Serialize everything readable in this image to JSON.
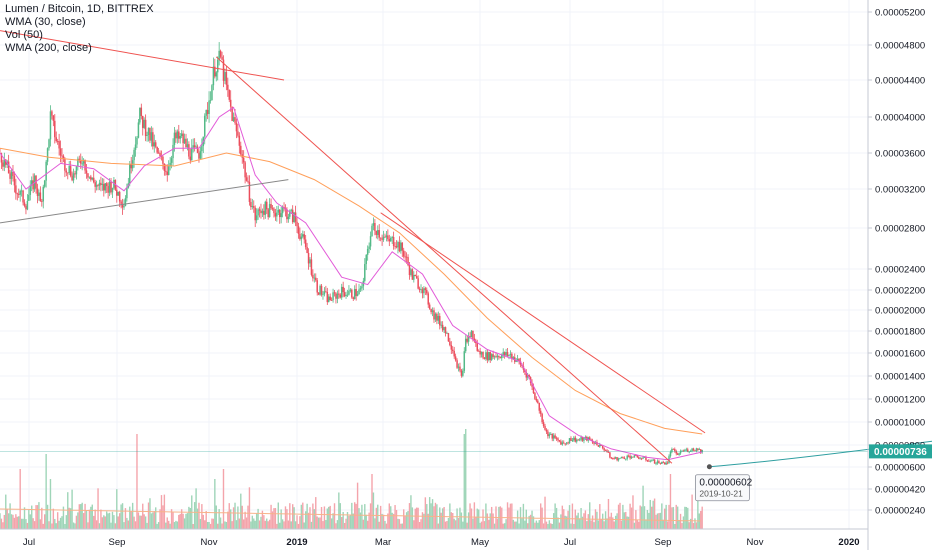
{
  "legend": {
    "symbol": "Lumen / Bitcoin, 1D, BITTREX",
    "wma30": "WMA (30, close)",
    "vol": "Vol (50)",
    "wma200": "WMA (200, close)"
  },
  "colors": {
    "up": "#53b987",
    "down": "#eb4d5c",
    "vol_up": "#9fd5b8",
    "vol_down": "#f4a4ab",
    "wma30": "#e25bd8",
    "wma200": "#ff9f5a",
    "vol_ma": "#f7b38a",
    "trend_red": "#ef5350",
    "trend_gray": "#888888",
    "projection": "#2e9ea0",
    "last_price_bg": "#26a69a"
  },
  "current_price_label": "0.00000736",
  "tooltip": {
    "price": "0.00000602",
    "date": "2019-10-21"
  },
  "chart_data": {
    "type": "candlestick",
    "title": "Lumen / Bitcoin, 1D, BITTREX",
    "y_axis_ticks": [
      "0.00005200",
      "0.00004800",
      "0.00004400",
      "0.00004000",
      "0.00003600",
      "0.00003200",
      "0.00002800",
      "0.00002400",
      "0.00002200",
      "0.00002000",
      "0.00001800",
      "0.00001600",
      "0.00001400",
      "0.00001200",
      "0.00001000",
      "0.00000800",
      "0.00000600",
      "0.00000420",
      "0.00000240"
    ],
    "x_axis_ticks": [
      {
        "label": "Jul",
        "bold": false
      },
      {
        "label": "Sep",
        "bold": false
      },
      {
        "label": "Nov",
        "bold": false
      },
      {
        "label": "2019",
        "bold": true
      },
      {
        "label": "Mar",
        "bold": false
      },
      {
        "label": "May",
        "bold": false
      },
      {
        "label": "Jul",
        "bold": false
      },
      {
        "label": "Sep",
        "bold": false
      },
      {
        "label": "Nov",
        "bold": false
      },
      {
        "label": "2020",
        "bold": true
      }
    ],
    "x_range": [
      "2018-06-16",
      "2020-02-08"
    ],
    "y_scale": "log",
    "last_price": 7.36e-06,
    "close_series": [
      {
        "date": "2018-06-16",
        "close": 3.6e-05
      },
      {
        "date": "2018-06-22",
        "close": 3.38e-05
      },
      {
        "date": "2018-06-28",
        "close": 3.18e-05
      },
      {
        "date": "2018-07-04",
        "close": 3.05e-05
      },
      {
        "date": "2018-07-10",
        "close": 3.3e-05
      },
      {
        "date": "2018-07-14",
        "close": 3.05e-05
      },
      {
        "date": "2018-07-18",
        "close": 3.45e-05
      },
      {
        "date": "2018-07-21",
        "close": 4e-05
      },
      {
        "date": "2018-07-25",
        "close": 3.75e-05
      },
      {
        "date": "2018-07-30",
        "close": 3.5e-05
      },
      {
        "date": "2018-08-06",
        "close": 3.35e-05
      },
      {
        "date": "2018-08-12",
        "close": 3.55e-05
      },
      {
        "date": "2018-08-18",
        "close": 3.3e-05
      },
      {
        "date": "2018-08-25",
        "close": 3.2e-05
      },
      {
        "date": "2018-09-02",
        "close": 3.25e-05
      },
      {
        "date": "2018-09-10",
        "close": 3.05e-05
      },
      {
        "date": "2018-09-16",
        "close": 3.6e-05
      },
      {
        "date": "2018-09-21",
        "close": 4e-05
      },
      {
        "date": "2018-09-26",
        "close": 3.85e-05
      },
      {
        "date": "2018-10-04",
        "close": 3.55e-05
      },
      {
        "date": "2018-10-10",
        "close": 3.4e-05
      },
      {
        "date": "2018-10-15",
        "close": 3.75e-05
      },
      {
        "date": "2018-10-20",
        "close": 3.75e-05
      },
      {
        "date": "2018-10-26",
        "close": 3.6e-05
      },
      {
        "date": "2018-11-01",
        "close": 3.6e-05
      },
      {
        "date": "2018-11-07",
        "close": 4.1e-05
      },
      {
        "date": "2018-11-12",
        "close": 4.55e-05
      },
      {
        "date": "2018-11-16",
        "close": 4.65e-05
      },
      {
        "date": "2018-11-20",
        "close": 4.3e-05
      },
      {
        "date": "2018-11-25",
        "close": 3.95e-05
      },
      {
        "date": "2018-11-30",
        "close": 3.65e-05
      },
      {
        "date": "2018-12-05",
        "close": 3.2e-05
      },
      {
        "date": "2018-12-10",
        "close": 2.9e-05
      },
      {
        "date": "2018-12-15",
        "close": 3e-05
      },
      {
        "date": "2018-12-22",
        "close": 2.96e-05
      },
      {
        "date": "2018-12-29",
        "close": 2.98e-05
      },
      {
        "date": "2019-01-06",
        "close": 2.9e-05
      },
      {
        "date": "2019-01-14",
        "close": 2.6e-05
      },
      {
        "date": "2019-01-22",
        "close": 2.22e-05
      },
      {
        "date": "2019-01-30",
        "close": 2.1e-05
      },
      {
        "date": "2019-02-08",
        "close": 2.18e-05
      },
      {
        "date": "2019-02-16",
        "close": 2.16e-05
      },
      {
        "date": "2019-02-22",
        "close": 2.2e-05
      },
      {
        "date": "2019-02-26",
        "close": 2.6e-05
      },
      {
        "date": "2019-03-02",
        "close": 2.83e-05
      },
      {
        "date": "2019-03-07",
        "close": 2.73e-05
      },
      {
        "date": "2019-03-12",
        "close": 2.66e-05
      },
      {
        "date": "2019-03-17",
        "close": 2.67e-05
      },
      {
        "date": "2019-03-23",
        "close": 2.55e-05
      },
      {
        "date": "2019-03-29",
        "close": 2.32e-05
      },
      {
        "date": "2019-04-05",
        "close": 2.22e-05
      },
      {
        "date": "2019-04-13",
        "close": 1.95e-05
      },
      {
        "date": "2019-04-20",
        "close": 1.83e-05
      },
      {
        "date": "2019-04-26",
        "close": 1.64e-05
      },
      {
        "date": "2019-05-02",
        "close": 1.38e-05
      },
      {
        "date": "2019-05-05",
        "close": 1.7e-05
      },
      {
        "date": "2019-05-09",
        "close": 1.78e-05
      },
      {
        "date": "2019-05-14",
        "close": 1.6e-05
      },
      {
        "date": "2019-05-20",
        "close": 1.57e-05
      },
      {
        "date": "2019-05-28",
        "close": 1.58e-05
      },
      {
        "date": "2019-06-05",
        "close": 1.58e-05
      },
      {
        "date": "2019-06-12",
        "close": 1.5e-05
      },
      {
        "date": "2019-06-18",
        "close": 1.38e-05
      },
      {
        "date": "2019-06-24",
        "close": 1.15e-05
      },
      {
        "date": "2019-06-30",
        "close": 9e-06
      },
      {
        "date": "2019-07-06",
        "close": 8.5e-06
      },
      {
        "date": "2019-07-12",
        "close": 8.1e-06
      },
      {
        "date": "2019-07-17",
        "close": 8.5e-06
      },
      {
        "date": "2019-07-22",
        "close": 8.4e-06
      },
      {
        "date": "2019-07-28",
        "close": 8.5e-06
      },
      {
        "date": "2019-08-04",
        "close": 8.1e-06
      },
      {
        "date": "2019-08-10",
        "close": 7.5e-06
      },
      {
        "date": "2019-08-14",
        "close": 6.7e-06
      },
      {
        "date": "2019-08-20",
        "close": 6.7e-06
      },
      {
        "date": "2019-08-26",
        "close": 6.9e-06
      },
      {
        "date": "2019-09-02",
        "close": 6.8e-06
      },
      {
        "date": "2019-09-08",
        "close": 6.6e-06
      },
      {
        "date": "2019-09-14",
        "close": 6.4e-06
      },
      {
        "date": "2019-09-18",
        "close": 6.3e-06
      },
      {
        "date": "2019-09-22",
        "close": 6.4e-06
      },
      {
        "date": "2019-09-25",
        "close": 7.7e-06
      },
      {
        "date": "2019-09-28",
        "close": 7e-06
      },
      {
        "date": "2019-10-02",
        "close": 7.4e-06
      },
      {
        "date": "2019-10-07",
        "close": 7.5e-06
      },
      {
        "date": "2019-10-12",
        "close": 7.6e-06
      },
      {
        "date": "2019-10-16",
        "close": 7.4e-06
      }
    ],
    "wma30_series": [
      {
        "date": "2018-06-16",
        "value": 3.6e-05
      },
      {
        "date": "2018-07-04",
        "value": 3.2e-05
      },
      {
        "date": "2018-07-28",
        "value": 3.48e-05
      },
      {
        "date": "2018-08-20",
        "value": 3.42e-05
      },
      {
        "date": "2018-09-10",
        "value": 3.18e-05
      },
      {
        "date": "2018-09-24",
        "value": 3.45e-05
      },
      {
        "date": "2018-10-15",
        "value": 3.65e-05
      },
      {
        "date": "2018-11-01",
        "value": 3.65e-05
      },
      {
        "date": "2018-11-15",
        "value": 4e-05
      },
      {
        "date": "2018-11-25",
        "value": 4.1e-05
      },
      {
        "date": "2018-12-10",
        "value": 3.35e-05
      },
      {
        "date": "2018-12-25",
        "value": 3.05e-05
      },
      {
        "date": "2019-01-14",
        "value": 2.85e-05
      },
      {
        "date": "2019-02-08",
        "value": 2.32e-05
      },
      {
        "date": "2019-02-26",
        "value": 2.25e-05
      },
      {
        "date": "2019-03-15",
        "value": 2.56e-05
      },
      {
        "date": "2019-04-05",
        "value": 2.35e-05
      },
      {
        "date": "2019-04-26",
        "value": 1.85e-05
      },
      {
        "date": "2019-05-20",
        "value": 1.63e-05
      },
      {
        "date": "2019-06-12",
        "value": 1.52e-05
      },
      {
        "date": "2019-07-02",
        "value": 1.05e-05
      },
      {
        "date": "2019-07-22",
        "value": 8.8e-06
      },
      {
        "date": "2019-08-14",
        "value": 7.6e-06
      },
      {
        "date": "2019-09-08",
        "value": 6.8e-06
      },
      {
        "date": "2019-09-22",
        "value": 6.6e-06
      },
      {
        "date": "2019-10-16",
        "value": 7.3e-06
      }
    ],
    "wma200_series": [
      {
        "date": "2018-06-16",
        "value": 3.65e-05
      },
      {
        "date": "2018-07-20",
        "value": 3.55e-05
      },
      {
        "date": "2018-09-01",
        "value": 3.48e-05
      },
      {
        "date": "2018-10-15",
        "value": 3.45e-05
      },
      {
        "date": "2018-11-20",
        "value": 3.6e-05
      },
      {
        "date": "2018-12-20",
        "value": 3.5e-05
      },
      {
        "date": "2019-01-20",
        "value": 3.3e-05
      },
      {
        "date": "2019-02-20",
        "value": 3.02e-05
      },
      {
        "date": "2019-03-20",
        "value": 2.75e-05
      },
      {
        "date": "2019-04-20",
        "value": 2.35e-05
      },
      {
        "date": "2019-05-20",
        "value": 1.92e-05
      },
      {
        "date": "2019-06-20",
        "value": 1.56e-05
      },
      {
        "date": "2019-07-20",
        "value": 1.27e-05
      },
      {
        "date": "2019-08-20",
        "value": 1.07e-05
      },
      {
        "date": "2019-09-20",
        "value": 9.4e-06
      },
      {
        "date": "2019-10-16",
        "value": 8.9e-06
      }
    ],
    "trendlines": [
      {
        "name": "",
        "color_key": "trend_red",
        "points": [
          {
            "date": "2018-06-16",
            "value": 4.97e-05
          },
          {
            "date": "2018-12-30",
            "value": 4.4e-05
          }
        ]
      },
      {
        "name": "",
        "color_key": "trend_red",
        "points": [
          {
            "date": "2018-11-13",
            "value": 4.66e-05
          },
          {
            "date": "2019-09-25",
            "value": 6.3e-06
          }
        ]
      },
      {
        "name": "",
        "color_key": "trend_red",
        "points": [
          {
            "date": "2019-03-07",
            "value": 2.95e-05
          },
          {
            "date": "2019-10-18",
            "value": 9e-06
          }
        ]
      },
      {
        "name": "",
        "color_key": "trend_gray",
        "points": [
          {
            "date": "2018-06-16",
            "value": 2.85e-05
          },
          {
            "date": "2019-01-02",
            "value": 3.3e-05
          }
        ]
      }
    ],
    "projection": {
      "points": [
        {
          "date": "2019-10-21",
          "value": 6.02e-06
        },
        {
          "date": "2019-12-10",
          "value": 6.5e-06
        },
        {
          "date": "2020-02-08",
          "value": 8.3e-06
        }
      ]
    },
    "volume_peaks": [
      {
        "date": "2018-06-30",
        "rel": 0.6
      },
      {
        "date": "2018-07-18",
        "rel": 0.75
      },
      {
        "date": "2018-07-21",
        "rel": 0.5
      },
      {
        "date": "2018-09-19",
        "rel": 0.95
      },
      {
        "date": "2018-11-12",
        "rel": 0.5
      },
      {
        "date": "2018-11-18",
        "rel": 0.6
      },
      {
        "date": "2019-03-01",
        "rel": 0.55
      },
      {
        "date": "2019-05-04",
        "rel": 0.95
      },
      {
        "date": "2019-05-05",
        "rel": 1.0
      },
      {
        "date": "2019-08-12",
        "rel": 0.3
      },
      {
        "date": "2019-09-24",
        "rel": 0.55
      }
    ]
  }
}
